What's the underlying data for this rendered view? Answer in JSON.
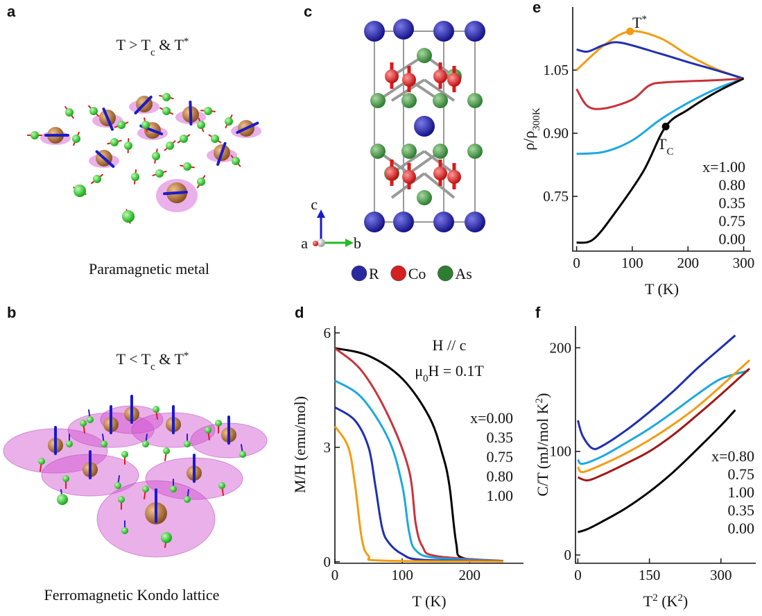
{
  "panels": {
    "a": {
      "label": "a",
      "heading": [
        "T > T",
        "c",
        " & T",
        "*"
      ],
      "caption": "Paramagnetic metal"
    },
    "b": {
      "label": "b",
      "heading": [
        "T < T",
        "c",
        " & T",
        "*"
      ],
      "caption": "Ferromagnetic Kondo lattice"
    },
    "c": {
      "label": "c",
      "axes": {
        "c": "c",
        "a": "a",
        "b": "b"
      },
      "legend": [
        {
          "name": "R",
          "color": "#2a2aa0"
        },
        {
          "name": "Co",
          "color": "#d42020"
        },
        {
          "name": "As",
          "color": "#2e7d32"
        }
      ]
    }
  },
  "chart_data": [
    {
      "type": "line",
      "panel_label": "e",
      "ylabel": [
        "ρ/ρ",
        "300K"
      ],
      "xlabel": "T (K)",
      "xlim": [
        -7,
        313
      ],
      "xticks": [
        0,
        100,
        200,
        300
      ],
      "ylim": [
        0.62,
        1.2
      ],
      "yticks": [
        {
          "value": 1.05,
          "label": "1.05"
        },
        {
          "value": 0.9,
          "label": "0.90"
        },
        {
          "value": 0.75,
          "label": "0.75"
        }
      ],
      "annotations": [
        {
          "parts": [
            "T",
            "*"
          ],
          "color": "#f39c12"
        },
        {
          "parts": [
            "T",
            "C"
          ],
          "color": "#000000"
        }
      ],
      "series": [
        {
          "name": "x=1.00",
          "color": "#f39c12",
          "x": [
            0,
            50,
            96,
            150,
            200,
            250,
            300
          ],
          "values": [
            1.05,
            1.11,
            1.142,
            1.126,
            1.086,
            1.053,
            1.03
          ]
        },
        {
          "name": "0.80",
          "color": "#1f2fb0",
          "x": [
            0,
            20,
            50,
            80,
            150,
            200,
            250,
            300
          ],
          "values": [
            1.099,
            1.094,
            1.11,
            1.115,
            1.089,
            1.069,
            1.05,
            1.03
          ]
        },
        {
          "name": "0.35",
          "color": "#c8323a",
          "x": [
            0,
            20,
            50,
            100,
            130,
            160,
            250,
            300
          ],
          "values": [
            1.005,
            0.964,
            0.959,
            0.98,
            1.013,
            1.021,
            1.026,
            1.03
          ]
        },
        {
          "name": "0.75",
          "color": "#1ba8e0",
          "x": [
            0,
            50,
            100,
            150,
            200,
            250,
            300
          ],
          "values": [
            0.851,
            0.856,
            0.883,
            0.932,
            0.972,
            1.005,
            1.03
          ]
        },
        {
          "name": "0.00",
          "color": "#000000",
          "x": [
            0,
            30,
            70,
            120,
            160,
            200,
            250,
            300
          ],
          "values": [
            0.64,
            0.648,
            0.713,
            0.81,
            0.916,
            0.956,
            0.997,
            1.03
          ]
        }
      ]
    },
    {
      "type": "line",
      "panel_label": "d",
      "ylabel": "M/H (emu/mol)",
      "xlabel": "T (K)",
      "xlim": [
        0,
        280
      ],
      "xticks": [
        0,
        100,
        200
      ],
      "ylim": [
        -0.04,
        6.18
      ],
      "yticks": [
        0,
        3,
        6
      ],
      "annotations": [
        {
          "parts": [
            "H // c"
          ],
          "color": "#000000"
        },
        {
          "parts": [
            "μ",
            "0",
            "H = 0.1T"
          ],
          "color": "#000000"
        }
      ],
      "series": [
        {
          "name": "x=0.00",
          "color": "#000000",
          "x": [
            0,
            50,
            100,
            140,
            160,
            170,
            180,
            190,
            250
          ],
          "values": [
            5.6,
            5.4,
            4.8,
            3.8,
            2.8,
            2.0,
            0.5,
            0.1,
            0.02
          ]
        },
        {
          "name": "0.35",
          "color": "#c8323a",
          "x": [
            0,
            40,
            80,
            110,
            120,
            130,
            150,
            250
          ],
          "values": [
            5.6,
            5.0,
            3.8,
            2.4,
            1.0,
            0.4,
            0.15,
            0.02
          ]
        },
        {
          "name": "0.75",
          "color": "#1ba8e0",
          "x": [
            0,
            40,
            80,
            100,
            110,
            120,
            150,
            250
          ],
          "values": [
            4.75,
            4.3,
            3.2,
            2.0,
            0.8,
            0.3,
            0.1,
            0.02
          ]
        },
        {
          "name": "0.80",
          "color": "#1f2fb0",
          "x": [
            0,
            30,
            50,
            60,
            70,
            80,
            100,
            130,
            250
          ],
          "values": [
            4.05,
            3.7,
            3.0,
            2.0,
            0.9,
            0.5,
            0.2,
            0.05,
            0.02
          ]
        },
        {
          "name": "1.00",
          "color": "#f39c12",
          "x": [
            0,
            20,
            30,
            40,
            50,
            70,
            250
          ],
          "values": [
            3.55,
            3.0,
            2.0,
            0.6,
            0.15,
            0.03,
            0.01
          ]
        }
      ]
    },
    {
      "type": "line",
      "panel_label": "f",
      "ylabel": [
        "C/T (mJ/mol K",
        "2",
        ")"
      ],
      "xlabel": [
        "T",
        "2",
        " (K",
        "2",
        ")"
      ],
      "xlim": [
        -5,
        373
      ],
      "xticks": [
        0,
        150,
        300
      ],
      "ylim": [
        -8,
        221
      ],
      "yticks": [
        0,
        100,
        200
      ],
      "annotations": [],
      "series": [
        {
          "name": "x=0.80",
          "color": "#1f2fb0",
          "x": [
            0,
            10,
            30,
            50,
            100,
            150,
            200,
            250,
            300,
            330
          ],
          "values": [
            130,
            115,
            103,
            105,
            120,
            138,
            158,
            180,
            200,
            212
          ]
        },
        {
          "name": "0.75",
          "color": "#1ba8e0",
          "x": [
            0,
            10,
            50,
            100,
            150,
            200,
            250,
            300,
            358
          ],
          "values": [
            92,
            88,
            95,
            108,
            122,
            138,
            155,
            170,
            178
          ]
        },
        {
          "name": "1.00",
          "color": "#f39c12",
          "x": [
            0,
            10,
            50,
            100,
            150,
            200,
            250,
            300,
            360
          ],
          "values": [
            85,
            80,
            87,
            98,
            111,
            126,
            143,
            163,
            188
          ]
        },
        {
          "name": "0.35",
          "color": "#a01818",
          "x": [
            0,
            20,
            50,
            100,
            150,
            200,
            250,
            300,
            360
          ],
          "values": [
            75,
            72,
            77,
            88,
            100,
            116,
            135,
            155,
            180
          ]
        },
        {
          "name": "0.00",
          "color": "#000000",
          "x": [
            0,
            20,
            50,
            100,
            150,
            200,
            250,
            300,
            330
          ],
          "values": [
            22,
            25,
            32,
            45,
            61,
            80,
            102,
            125,
            140
          ]
        }
      ]
    }
  ]
}
